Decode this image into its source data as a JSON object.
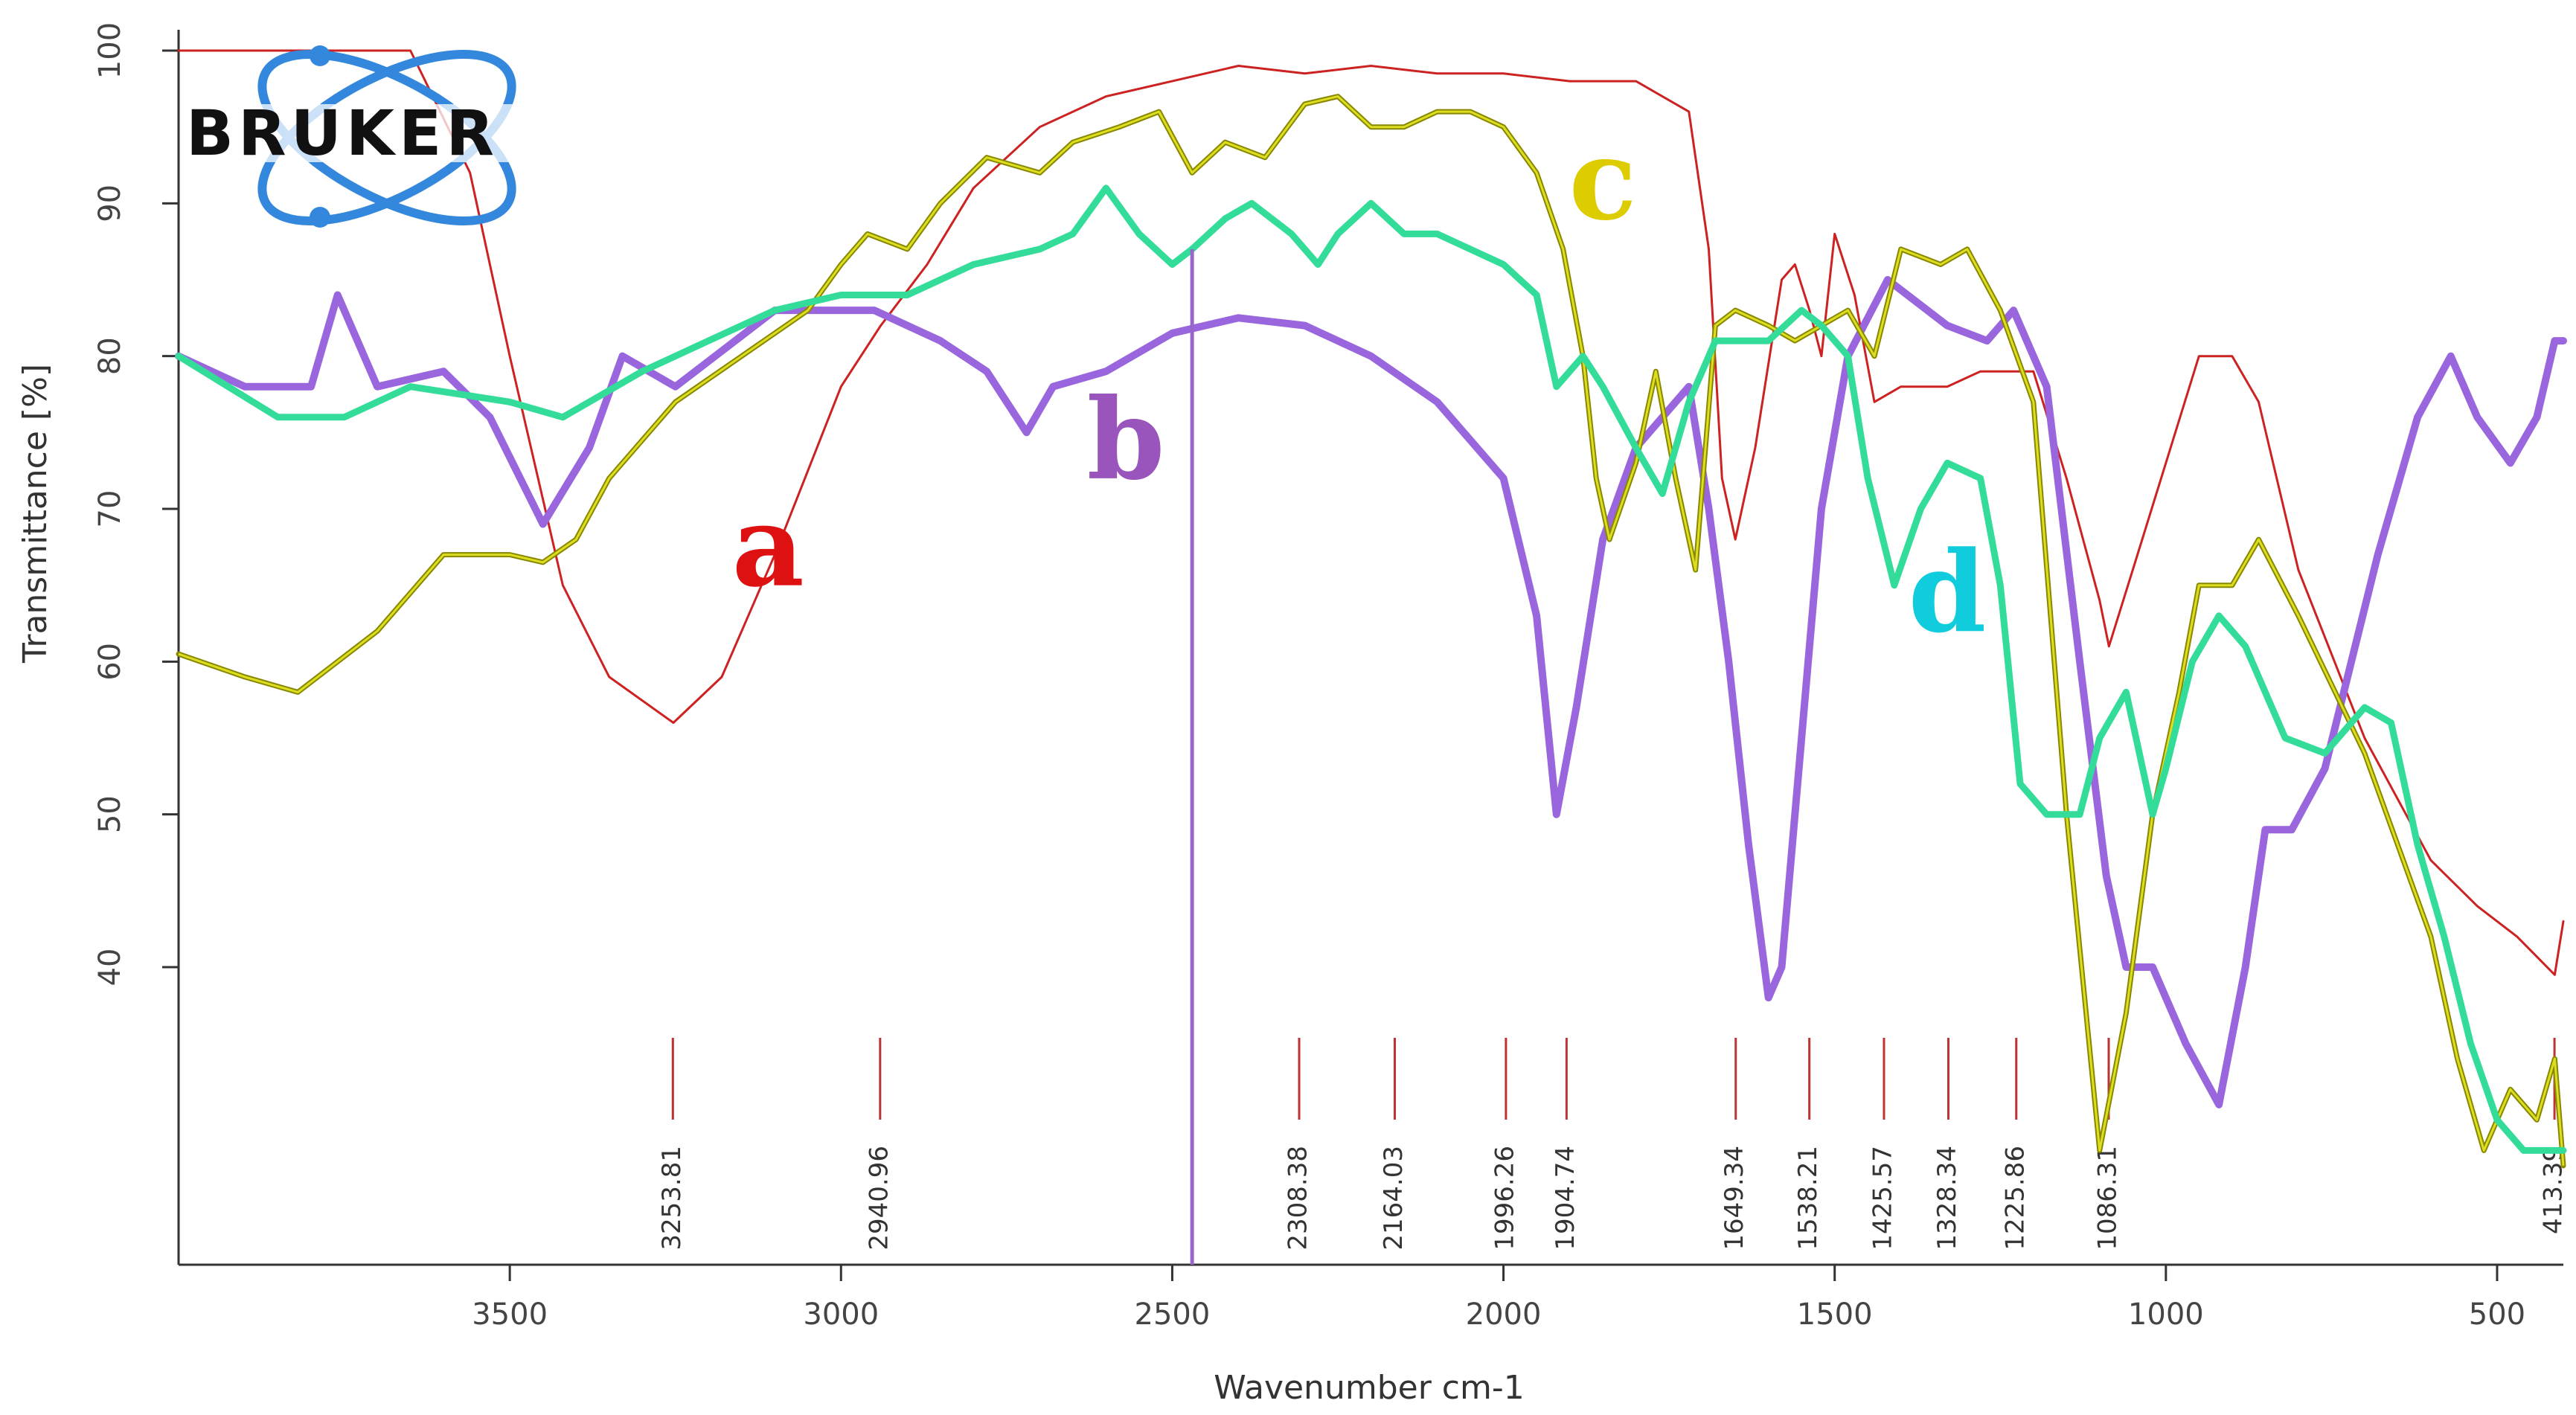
{
  "logo": {
    "text": "BRUKER"
  },
  "chart_data": {
    "type": "line",
    "title": "",
    "xlabel": "Wavenumber cm-1",
    "ylabel": "Transmittance [%]",
    "xlim": [
      4000,
      400
    ],
    "ylim": [
      20,
      100
    ],
    "x_reversed": true,
    "grid": false,
    "x_ticks": [
      3500,
      3000,
      2500,
      2000,
      1500,
      1000,
      500
    ],
    "y_ticks": [
      40,
      50,
      60,
      70,
      80,
      90,
      100
    ],
    "marker_line": {
      "x": 2470,
      "color": "#9966cc"
    },
    "peak_markers": [
      {
        "x": 3253.81,
        "label": "3253.81"
      },
      {
        "x": 2940.96,
        "label": "2940.96"
      },
      {
        "x": 2308.38,
        "label": "2308.38"
      },
      {
        "x": 2164.03,
        "label": "2164.03"
      },
      {
        "x": 1996.26,
        "label": "1996.26"
      },
      {
        "x": 1904.74,
        "label": "1904.74"
      },
      {
        "x": 1649.34,
        "label": "1649.34"
      },
      {
        "x": 1538.21,
        "label": "1538.21"
      },
      {
        "x": 1425.57,
        "label": "1425.57"
      },
      {
        "x": 1328.34,
        "label": "1328.34"
      },
      {
        "x": 1225.86,
        "label": "1225.86"
      },
      {
        "x": 1086.31,
        "label": "1086.31"
      },
      {
        "x": 413.39,
        "label": "413.39"
      }
    ],
    "series": [
      {
        "name": "a",
        "color": "#cc2222",
        "label_color": "#dd1111",
        "label_pos": [
          3110,
          65
        ],
        "points": [
          [
            4000,
            100
          ],
          [
            3650,
            100
          ],
          [
            3560,
            92
          ],
          [
            3500,
            80
          ],
          [
            3420,
            65
          ],
          [
            3350,
            59
          ],
          [
            3253,
            56
          ],
          [
            3180,
            59
          ],
          [
            3100,
            67
          ],
          [
            3000,
            78
          ],
          [
            2940,
            82
          ],
          [
            2870,
            86
          ],
          [
            2800,
            91
          ],
          [
            2700,
            95
          ],
          [
            2600,
            97
          ],
          [
            2500,
            98
          ],
          [
            2400,
            99
          ],
          [
            2300,
            98.5
          ],
          [
            2200,
            99
          ],
          [
            2100,
            98.5
          ],
          [
            2000,
            98.5
          ],
          [
            1900,
            98
          ],
          [
            1800,
            98
          ],
          [
            1720,
            96
          ],
          [
            1690,
            87
          ],
          [
            1670,
            72
          ],
          [
            1650,
            68
          ],
          [
            1620,
            74
          ],
          [
            1580,
            85
          ],
          [
            1560,
            86
          ],
          [
            1538,
            83
          ],
          [
            1520,
            80
          ],
          [
            1500,
            88
          ],
          [
            1470,
            84
          ],
          [
            1440,
            77
          ],
          [
            1400,
            78
          ],
          [
            1330,
            78
          ],
          [
            1280,
            79
          ],
          [
            1200,
            79
          ],
          [
            1150,
            72
          ],
          [
            1100,
            64
          ],
          [
            1086,
            61
          ],
          [
            1050,
            66
          ],
          [
            1000,
            73
          ],
          [
            950,
            80
          ],
          [
            900,
            80
          ],
          [
            860,
            77
          ],
          [
            800,
            66
          ],
          [
            700,
            55
          ],
          [
            600,
            47
          ],
          [
            530,
            44
          ],
          [
            470,
            42
          ],
          [
            413,
            39.5
          ],
          [
            400,
            43
          ]
        ]
      },
      {
        "name": "b",
        "color": "#9966dd",
        "label_color": "#9955bb",
        "label_pos": [
          2570,
          72
        ],
        "points": [
          [
            4000,
            80
          ],
          [
            3900,
            78
          ],
          [
            3800,
            78
          ],
          [
            3760,
            84
          ],
          [
            3700,
            78
          ],
          [
            3600,
            79
          ],
          [
            3530,
            76
          ],
          [
            3450,
            69
          ],
          [
            3380,
            74
          ],
          [
            3330,
            80
          ],
          [
            3250,
            78
          ],
          [
            3100,
            83
          ],
          [
            2950,
            83
          ],
          [
            2850,
            81
          ],
          [
            2780,
            79
          ],
          [
            2720,
            75
          ],
          [
            2680,
            78
          ],
          [
            2600,
            79
          ],
          [
            2500,
            81.5
          ],
          [
            2400,
            82.5
          ],
          [
            2300,
            82
          ],
          [
            2200,
            80
          ],
          [
            2100,
            77
          ],
          [
            2000,
            72
          ],
          [
            1950,
            63
          ],
          [
            1920,
            50
          ],
          [
            1890,
            57
          ],
          [
            1850,
            68
          ],
          [
            1800,
            74
          ],
          [
            1720,
            78
          ],
          [
            1690,
            70
          ],
          [
            1660,
            60
          ],
          [
            1630,
            48
          ],
          [
            1600,
            38
          ],
          [
            1580,
            40
          ],
          [
            1550,
            55
          ],
          [
            1520,
            70
          ],
          [
            1480,
            80
          ],
          [
            1420,
            85
          ],
          [
            1330,
            82
          ],
          [
            1270,
            81
          ],
          [
            1230,
            83
          ],
          [
            1180,
            78
          ],
          [
            1130,
            60
          ],
          [
            1090,
            46
          ],
          [
            1060,
            40
          ],
          [
            1020,
            40
          ],
          [
            970,
            35
          ],
          [
            920,
            31
          ],
          [
            880,
            40
          ],
          [
            850,
            49
          ],
          [
            810,
            49
          ],
          [
            760,
            53
          ],
          [
            720,
            60
          ],
          [
            680,
            67
          ],
          [
            620,
            76
          ],
          [
            570,
            80
          ],
          [
            530,
            76
          ],
          [
            480,
            73
          ],
          [
            440,
            76
          ],
          [
            413,
            81
          ],
          [
            400,
            81
          ]
        ]
      },
      {
        "name": "c",
        "color": "#888800",
        "label_color": "#ddcc00",
        "label_pos": [
          1850,
          89
        ],
        "points": [
          [
            4000,
            60.5
          ],
          [
            3900,
            59
          ],
          [
            3820,
            58
          ],
          [
            3700,
            62
          ],
          [
            3600,
            67
          ],
          [
            3500,
            67
          ],
          [
            3450,
            66.5
          ],
          [
            3400,
            68
          ],
          [
            3350,
            72
          ],
          [
            3250,
            77
          ],
          [
            3150,
            80
          ],
          [
            3050,
            83
          ],
          [
            3000,
            86
          ],
          [
            2960,
            88
          ],
          [
            2900,
            87
          ],
          [
            2850,
            90
          ],
          [
            2780,
            93
          ],
          [
            2700,
            92
          ],
          [
            2650,
            94
          ],
          [
            2580,
            95
          ],
          [
            2520,
            96
          ],
          [
            2470,
            92
          ],
          [
            2420,
            94
          ],
          [
            2360,
            93
          ],
          [
            2300,
            96.5
          ],
          [
            2250,
            97
          ],
          [
            2200,
            95
          ],
          [
            2150,
            95
          ],
          [
            2100,
            96
          ],
          [
            2050,
            96
          ],
          [
            2000,
            95
          ],
          [
            1950,
            92
          ],
          [
            1910,
            87
          ],
          [
            1880,
            80
          ],
          [
            1860,
            72
          ],
          [
            1840,
            68
          ],
          [
            1800,
            73
          ],
          [
            1770,
            79
          ],
          [
            1740,
            72
          ],
          [
            1710,
            66
          ],
          [
            1680,
            82
          ],
          [
            1650,
            83
          ],
          [
            1600,
            82
          ],
          [
            1560,
            81
          ],
          [
            1520,
            82
          ],
          [
            1480,
            83
          ],
          [
            1440,
            80
          ],
          [
            1400,
            87
          ],
          [
            1340,
            86
          ],
          [
            1300,
            87
          ],
          [
            1250,
            83
          ],
          [
            1200,
            77
          ],
          [
            1150,
            50
          ],
          [
            1100,
            28
          ],
          [
            1060,
            37
          ],
          [
            1020,
            50
          ],
          [
            980,
            58
          ],
          [
            950,
            65
          ],
          [
            900,
            65
          ],
          [
            860,
            68
          ],
          [
            800,
            63
          ],
          [
            700,
            54
          ],
          [
            600,
            42
          ],
          [
            560,
            34
          ],
          [
            520,
            28
          ],
          [
            480,
            32
          ],
          [
            440,
            30
          ],
          [
            413,
            34
          ],
          [
            400,
            27
          ]
        ]
      },
      {
        "name": "d",
        "color": "#33dd99",
        "label_color": "#11ccdd",
        "label_pos": [
          1330,
          62
        ],
        "points": [
          [
            4000,
            80
          ],
          [
            3850,
            76
          ],
          [
            3750,
            76
          ],
          [
            3650,
            78
          ],
          [
            3500,
            77
          ],
          [
            3420,
            76
          ],
          [
            3300,
            79
          ],
          [
            3200,
            81
          ],
          [
            3100,
            83
          ],
          [
            3000,
            84
          ],
          [
            2900,
            84
          ],
          [
            2800,
            86
          ],
          [
            2700,
            87
          ],
          [
            2650,
            88
          ],
          [
            2600,
            91
          ],
          [
            2550,
            88
          ],
          [
            2500,
            86
          ],
          [
            2470,
            87
          ],
          [
            2420,
            89
          ],
          [
            2380,
            90
          ],
          [
            2320,
            88
          ],
          [
            2280,
            86
          ],
          [
            2250,
            88
          ],
          [
            2200,
            90
          ],
          [
            2150,
            88
          ],
          [
            2100,
            88
          ],
          [
            2050,
            87
          ],
          [
            2000,
            86
          ],
          [
            1950,
            84
          ],
          [
            1920,
            78
          ],
          [
            1880,
            80
          ],
          [
            1850,
            78
          ],
          [
            1800,
            74
          ],
          [
            1760,
            71
          ],
          [
            1720,
            77
          ],
          [
            1680,
            81
          ],
          [
            1600,
            81
          ],
          [
            1550,
            83
          ],
          [
            1520,
            82
          ],
          [
            1480,
            80
          ],
          [
            1450,
            72
          ],
          [
            1410,
            65
          ],
          [
            1370,
            70
          ],
          [
            1330,
            73
          ],
          [
            1280,
            72
          ],
          [
            1250,
            65
          ],
          [
            1220,
            52
          ],
          [
            1180,
            50
          ],
          [
            1130,
            50
          ],
          [
            1100,
            55
          ],
          [
            1060,
            58
          ],
          [
            1020,
            50
          ],
          [
            1000,
            53
          ],
          [
            960,
            60
          ],
          [
            920,
            63
          ],
          [
            880,
            61
          ],
          [
            820,
            55
          ],
          [
            760,
            54
          ],
          [
            700,
            57
          ],
          [
            660,
            56
          ],
          [
            620,
            48
          ],
          [
            580,
            42
          ],
          [
            540,
            35
          ],
          [
            500,
            30
          ],
          [
            460,
            28
          ],
          [
            430,
            28
          ],
          [
            400,
            28
          ]
        ]
      }
    ]
  }
}
